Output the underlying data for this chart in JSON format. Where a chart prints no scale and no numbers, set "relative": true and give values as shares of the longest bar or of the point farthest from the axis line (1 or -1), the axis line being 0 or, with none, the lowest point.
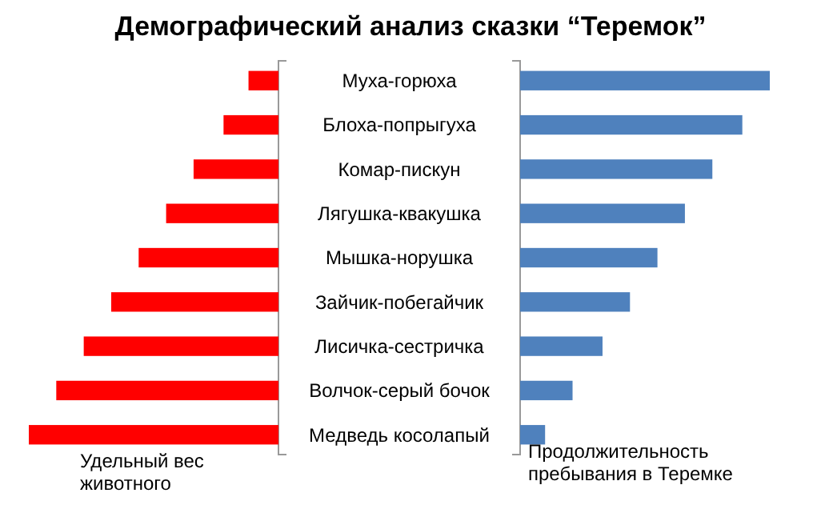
{
  "chart_data": [
    {
      "type": "bar",
      "title": "Демографический анализ сказки “Теремок”",
      "orientation": "horizontal",
      "relative": true,
      "categories": [
        "Муха-горюха",
        "Блоха-попрыгуха",
        "Комар-пискун",
        "Лягушка-квакушка",
        "Мышка-норушка",
        "Зайчик-побегайчик",
        "Лисичка-сестричка",
        "Волчок-серый бочок",
        "Медведь косолапый"
      ],
      "series": [
        {
          "name": "Удельный вес животного",
          "color": "#ff0000",
          "values": [
            -0.12,
            -0.22,
            -0.34,
            -0.45,
            -0.56,
            -0.67,
            -0.78,
            -0.89,
            -1
          ]
        }
      ]
    },
    {
      "type": "bar",
      "orientation": "horizontal",
      "relative": true,
      "categories": [
        null,
        null,
        null,
        null,
        null,
        null,
        null,
        null,
        null
      ],
      "series": [
        {
          "name": "Продолжительность пребывания в Теремке",
          "color": "#4f81bd",
          "values": [
            1,
            0.89,
            0.77,
            0.66,
            0.55,
            0.44,
            0.33,
            0.21,
            0.1
          ]
        }
      ]
    }
  ]
}
